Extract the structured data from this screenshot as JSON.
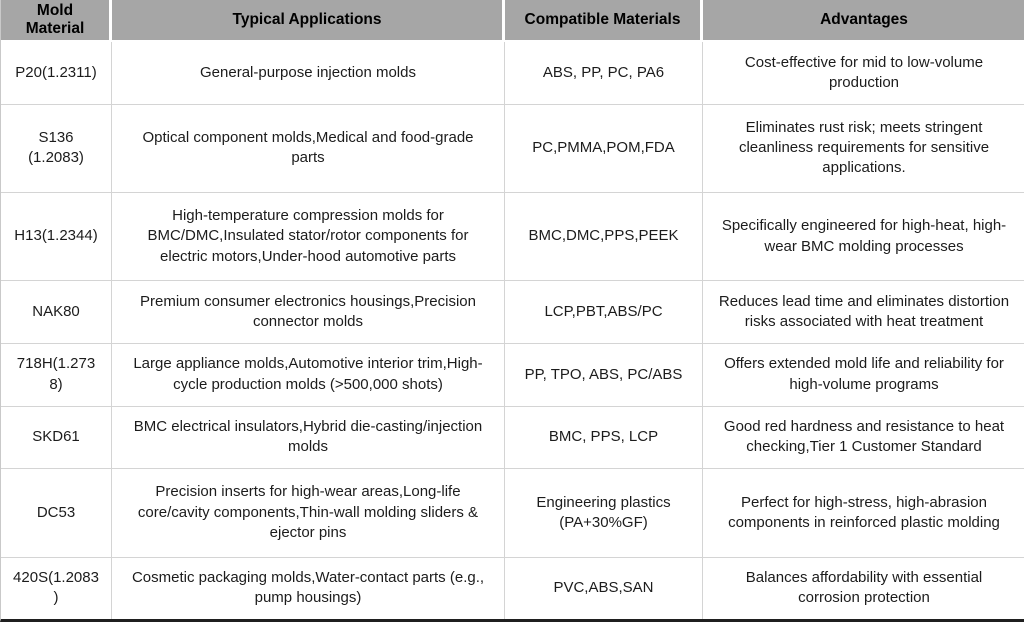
{
  "table": {
    "title": "mold-material-comparison",
    "columns": [
      {
        "label": "Mold Material"
      },
      {
        "label": "Typical Applications"
      },
      {
        "label": "Compatible Materials"
      },
      {
        "label": "Advantages"
      }
    ],
    "rows": [
      {
        "material": "P20(1.2311)",
        "applications": "General-purpose injection molds",
        "compatible": "ABS, PP, PC, PA6",
        "advantages": "Cost-effective for mid to low-volume production"
      },
      {
        "material": "S136 (1.2083)",
        "applications": "Optical component molds,Medical and food-grade parts",
        "compatible": "PC,PMMA,POM,FDA",
        "advantages": "Eliminates rust risk; meets stringent cleanliness requirements for sensitive applications."
      },
      {
        "material": "H13(1.2344)",
        "applications": "High-temperature compression molds for BMC/DMC,Insulated stator/rotor components for electric motors,Under-hood automotive parts",
        "compatible": "BMC,DMC,PPS,PEEK",
        "advantages": "Specifically engineered for high-heat, high-wear BMC molding processes"
      },
      {
        "material": "NAK80",
        "applications": "Premium consumer electronics housings,Precision connector molds",
        "compatible": "LCP,PBT,ABS/PC",
        "advantages": "Reduces lead time and eliminates distortion risks associated with heat treatment"
      },
      {
        "material": "718H(1.2738)",
        "applications": "Large appliance molds,Automotive interior trim,High-cycle production molds (>500,000 shots)",
        "compatible": "PP, TPO, ABS, PC/ABS",
        "advantages": "Offers extended mold life and reliability for high-volume programs"
      },
      {
        "material": "SKD61",
        "applications": "BMC electrical insulators,Hybrid die-casting/injection molds",
        "compatible": "BMC, PPS, LCP",
        "advantages": "Good red hardness and resistance to heat checking,Tier 1 Customer Standard"
      },
      {
        "material": "DC53",
        "applications": "Precision inserts for high-wear areas,Long-life core/cavity components,Thin-wall molding sliders & ejector pins",
        "compatible": "Engineering plastics (PA+30%GF)",
        "advantages": "Perfect for high-stress, high-abrasion components in reinforced plastic molding"
      },
      {
        "material": "420S(1.2083)",
        "applications": "Cosmetic packaging molds,Water-contact parts (e.g., pump housings)",
        "compatible": "PVC,ABS,SAN",
        "advantages": "Balances affordability with essential corrosion protection"
      }
    ],
    "colors": {
      "header_bg": "#a6a6a6",
      "header_text": "#000000",
      "row_bg": "#ffffff",
      "body_text": "#1c1c1c",
      "grid_line": "#d4d4d4",
      "outer_bottom_border": "#1f1f1f"
    }
  }
}
